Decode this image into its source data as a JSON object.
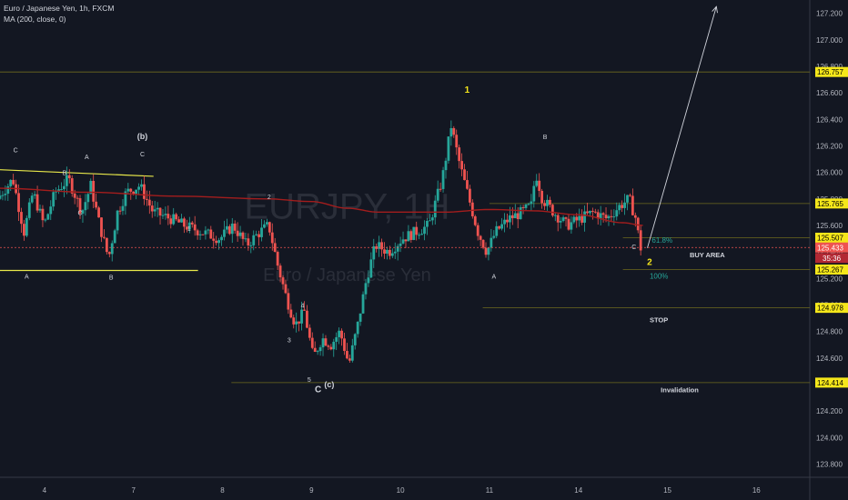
{
  "header": {
    "symbol_line": "Euro / Japanese Yen, 1h, FXCM",
    "indicator_line": "MA (200, close, 0)"
  },
  "watermark": {
    "ticker": "EURJPY, 1H",
    "name": "Euro / Japanese Yen"
  },
  "colors": {
    "background": "#131722",
    "up": "#26a69a",
    "down": "#ef5350",
    "ma": "#a31d1d",
    "level": "#6e6a1e",
    "trend": "#e8e84a",
    "badge": "#f5e71a",
    "axis_text": "#b2b5be",
    "fib": "#26a69a"
  },
  "chart_data": {
    "type": "candlestick",
    "title": "Euro / Japanese Yen, 1h, FXCM",
    "indicator": "MA (200, close, 0)",
    "ylim": [
      123.7,
      127.3
    ],
    "yticks": [
      "127.200",
      "127.000",
      "126.800",
      "126.600",
      "126.400",
      "126.200",
      "126.000",
      "125.800",
      "125.600",
      "125.400",
      "125.200",
      "125.000",
      "124.800",
      "124.600",
      "124.400",
      "124.200",
      "124.000",
      "123.800"
    ],
    "xticks": [
      "4",
      "7",
      "8",
      "9",
      "10",
      "11",
      "14",
      "15",
      "16"
    ],
    "xtick_pos": [
      1.0,
      3.0,
      5.0,
      7.0,
      9.0,
      11.0,
      13.0,
      15.0,
      17.0
    ],
    "xlim": [
      0,
      18.2
    ],
    "ohlc_path": [
      [
        0,
        125.8
      ],
      [
        0.35,
        125.95
      ],
      [
        0.6,
        125.55
      ],
      [
        0.8,
        125.85
      ],
      [
        1.05,
        125.6
      ],
      [
        1.3,
        125.85
      ],
      [
        1.6,
        125.95
      ],
      [
        1.9,
        125.7
      ],
      [
        2.1,
        125.9
      ],
      [
        2.3,
        125.6
      ],
      [
        2.5,
        125.35
      ],
      [
        2.7,
        125.7
      ],
      [
        2.9,
        125.85
      ],
      [
        3.2,
        125.9
      ],
      [
        3.5,
        125.7
      ],
      [
        3.9,
        125.65
      ],
      [
        4.2,
        125.6
      ],
      [
        4.6,
        125.55
      ],
      [
        5.0,
        125.5
      ],
      [
        5.3,
        125.6
      ],
      [
        5.6,
        125.45
      ],
      [
        5.9,
        125.55
      ],
      [
        6.1,
        125.6
      ],
      [
        6.3,
        125.3
      ],
      [
        6.5,
        125.05
      ],
      [
        6.7,
        124.85
      ],
      [
        6.9,
        124.95
      ],
      [
        7.1,
        124.6
      ],
      [
        7.3,
        124.75
      ],
      [
        7.5,
        124.7
      ],
      [
        7.7,
        124.8
      ],
      [
        7.9,
        124.55
      ],
      [
        8.1,
        124.85
      ],
      [
        8.3,
        125.2
      ],
      [
        8.5,
        125.45
      ],
      [
        8.8,
        125.4
      ],
      [
        9.1,
        125.5
      ],
      [
        9.4,
        125.55
      ],
      [
        9.7,
        125.6
      ],
      [
        10.0,
        125.95
      ],
      [
        10.2,
        126.35
      ],
      [
        10.4,
        126.05
      ],
      [
        10.6,
        125.8
      ],
      [
        10.8,
        125.55
      ],
      [
        11.0,
        125.4
      ],
      [
        11.2,
        125.55
      ],
      [
        11.5,
        125.65
      ],
      [
        11.8,
        125.7
      ],
      [
        12.0,
        125.75
      ],
      [
        12.1,
        126.0
      ],
      [
        12.25,
        125.8
      ],
      [
        12.5,
        125.7
      ],
      [
        12.8,
        125.6
      ],
      [
        13.1,
        125.65
      ],
      [
        13.4,
        125.7
      ],
      [
        13.7,
        125.65
      ],
      [
        14.0,
        125.75
      ],
      [
        14.2,
        125.8
      ],
      [
        14.35,
        125.65
      ],
      [
        14.45,
        125.43
      ]
    ],
    "ma_path": [
      [
        0,
        125.88
      ],
      [
        2.0,
        125.85
      ],
      [
        4.0,
        125.82
      ],
      [
        6.0,
        125.8
      ],
      [
        7.0,
        125.78
      ],
      [
        7.8,
        125.73
      ],
      [
        8.5,
        125.7
      ],
      [
        10.0,
        125.7
      ],
      [
        11.0,
        125.72
      ],
      [
        12.0,
        125.71
      ],
      [
        13.0,
        125.68
      ],
      [
        14.0,
        125.62
      ],
      [
        14.45,
        125.6
      ]
    ],
    "levels": [
      {
        "price": 126.757,
        "label": "126.757",
        "x0": 0
      },
      {
        "price": 125.765,
        "label": "125.765",
        "x0": 11.0
      },
      {
        "price": 125.507,
        "label": "125.507",
        "x0": 14.0
      },
      {
        "price": 125.267,
        "label": "125.267",
        "x0": 14.0
      },
      {
        "price": 124.978,
        "label": "124.978",
        "x0": 10.85
      },
      {
        "price": 124.414,
        "label": "124.414",
        "x0": 5.2
      }
    ],
    "last_price": {
      "value": "125.433",
      "countdown": "35:36"
    },
    "trendlines": [
      {
        "from": [
          0,
          126.02
        ],
        "to": [
          3.45,
          125.97
        ]
      },
      {
        "from": [
          0,
          125.26
        ],
        "to": [
          4.45,
          125.26
        ]
      }
    ],
    "projection_arrow": {
      "from": [
        14.55,
        125.43
      ],
      "to": [
        16.1,
        127.25
      ]
    },
    "fib": [
      {
        "label": "61.8%",
        "x": 14.65,
        "price": 125.47
      },
      {
        "label": "100%",
        "x": 14.6,
        "price": 125.2
      }
    ],
    "wave_labels": [
      {
        "text": "C",
        "x": 0.35,
        "price": 126.15,
        "size": 7
      },
      {
        "text": "A",
        "x": 0.6,
        "price": 125.2,
        "size": 7
      },
      {
        "text": "B",
        "x": 1.45,
        "price": 125.98,
        "size": 7
      },
      {
        "text": "C",
        "x": 1.8,
        "price": 125.68,
        "size": 7
      },
      {
        "text": "A",
        "x": 1.95,
        "price": 126.1,
        "size": 7
      },
      {
        "text": "B",
        "x": 2.5,
        "price": 125.19,
        "size": 7
      },
      {
        "text": "(b)",
        "x": 3.2,
        "price": 126.25,
        "size": 9
      },
      {
        "text": "C",
        "x": 3.2,
        "price": 126.12,
        "size": 7
      },
      {
        "text": "1",
        "x": 4.25,
        "price": 125.56,
        "size": 7
      },
      {
        "text": "2",
        "x": 6.05,
        "price": 125.8,
        "size": 7
      },
      {
        "text": "4",
        "x": 6.8,
        "price": 124.98,
        "size": 7
      },
      {
        "text": "3",
        "x": 6.5,
        "price": 124.72,
        "size": 7
      },
      {
        "text": "5",
        "x": 6.95,
        "price": 124.42,
        "size": 7
      },
      {
        "text": "C",
        "x": 7.15,
        "price": 124.34,
        "size": 10
      },
      {
        "text": "(c)",
        "x": 7.4,
        "price": 124.38,
        "size": 9
      },
      {
        "text": "1",
        "x": 10.5,
        "price": 126.6,
        "size": 10,
        "color": "#f5e71a"
      },
      {
        "text": "A",
        "x": 11.1,
        "price": 125.2,
        "size": 7
      },
      {
        "text": "B",
        "x": 12.25,
        "price": 126.25,
        "size": 7
      },
      {
        "text": "C",
        "x": 14.25,
        "price": 125.42,
        "size": 7
      },
      {
        "text": "2",
        "x": 14.6,
        "price": 125.3,
        "size": 10,
        "color": "#f5e71a"
      }
    ],
    "annotations": [
      {
        "text": "BUY AREA",
        "x": 15.5,
        "price": 125.36
      },
      {
        "text": "STOP",
        "x": 14.6,
        "price": 124.87
      },
      {
        "text": "Invalidation",
        "x": 14.85,
        "price": 124.34
      }
    ]
  }
}
